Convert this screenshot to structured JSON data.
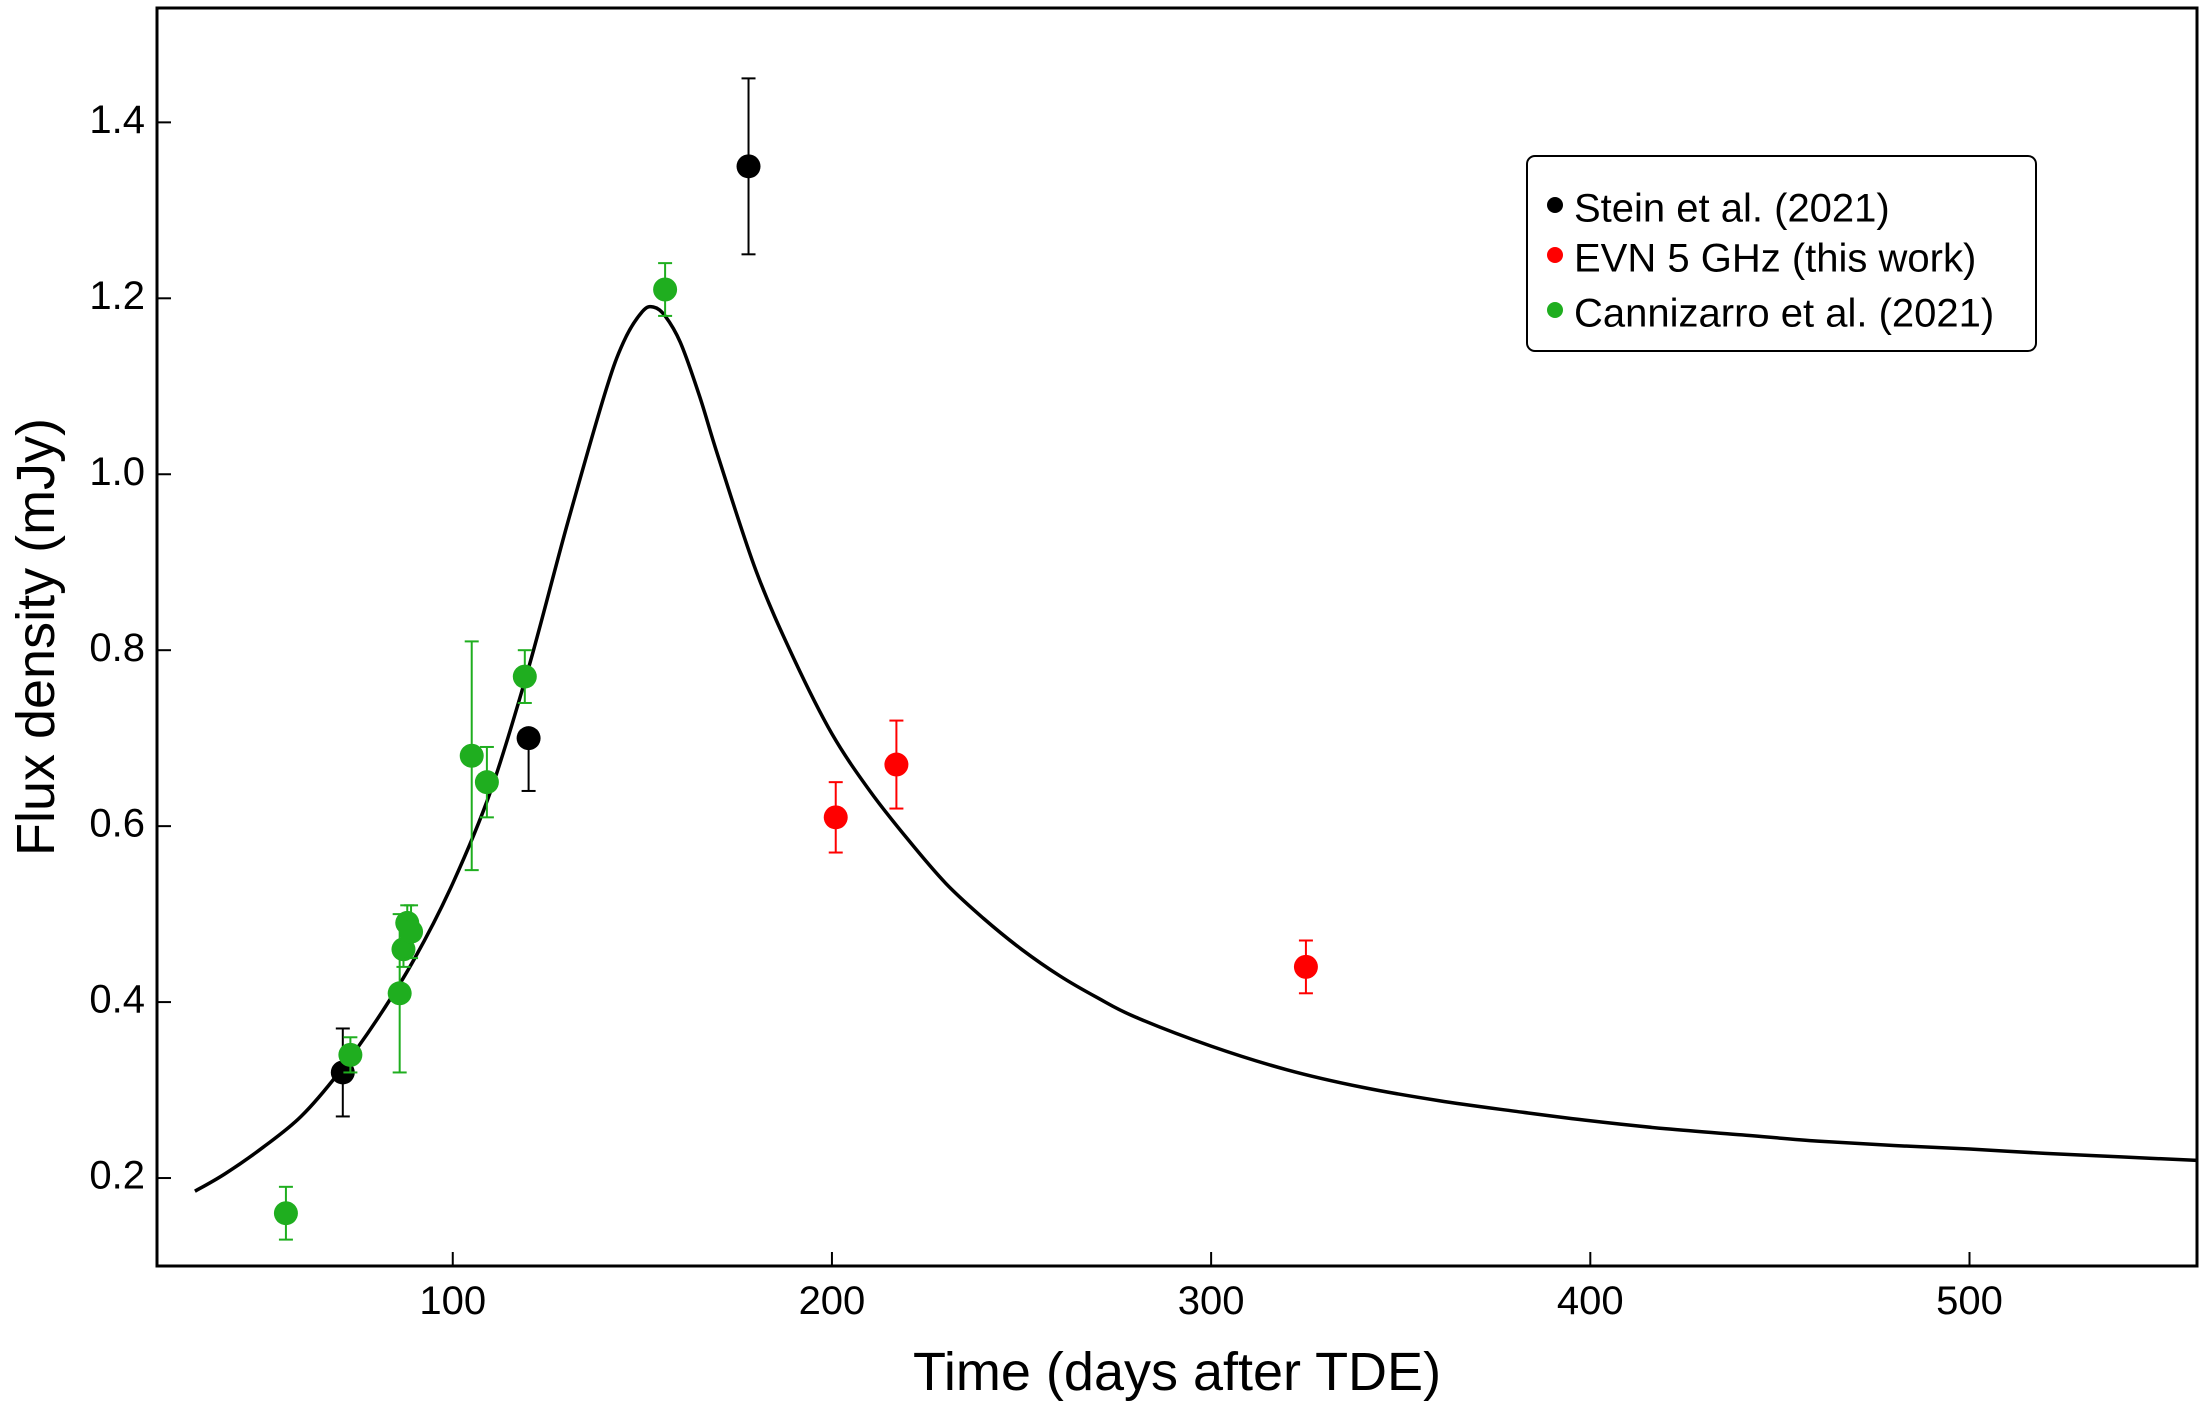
{
  "chart_data": {
    "type": "scatter",
    "title": "",
    "xlabel": "Time (days after TDE)",
    "ylabel": "Flux density (mJy)",
    "xlim": [
      22,
      560
    ],
    "ylim": [
      0.1,
      1.53
    ],
    "x_ticks": [
      100,
      200,
      300,
      400,
      500
    ],
    "y_ticks": [
      0.2,
      0.4,
      0.6,
      0.8,
      1.0,
      1.2,
      1.4
    ],
    "y_tick_labels": [
      "0.2",
      "0.4",
      "0.6",
      "0.8",
      "1.0",
      "1.2",
      "1.4"
    ],
    "grid": false,
    "legend_position": "top-right",
    "series": [
      {
        "name": "Stein et al. (2021)",
        "color": "#000000",
        "x": [
          71,
          120,
          178
        ],
        "y": [
          0.32,
          0.7,
          1.35
        ],
        "err_low": [
          0.27,
          0.64,
          1.25
        ],
        "err_high": [
          0.37,
          0.7,
          1.45
        ]
      },
      {
        "name": "EVN 5 GHz (this work)",
        "color": "#ff0000",
        "x": [
          201,
          217,
          325
        ],
        "y": [
          0.61,
          0.67,
          0.44
        ],
        "err_low": [
          0.57,
          0.62,
          0.41
        ],
        "err_high": [
          0.65,
          0.72,
          0.47
        ]
      },
      {
        "name": "Cannizarro et al. (2021)",
        "color": "#1fae1f",
        "x": [
          56,
          73,
          86,
          87,
          88,
          89,
          105,
          109,
          119,
          156
        ],
        "y": [
          0.16,
          0.34,
          0.41,
          0.46,
          0.49,
          0.48,
          0.68,
          0.65,
          0.77,
          1.21
        ],
        "err_low": [
          0.13,
          0.32,
          0.32,
          0.44,
          0.47,
          0.45,
          0.55,
          0.61,
          0.74,
          1.18
        ],
        "err_high": [
          0.19,
          0.36,
          0.5,
          0.49,
          0.51,
          0.51,
          0.81,
          0.69,
          0.8,
          1.24
        ]
      }
    ],
    "model_curve": {
      "name": "model",
      "color": "#000000",
      "x": [
        32,
        40,
        50,
        60,
        70,
        80,
        90,
        100,
        110,
        120,
        130,
        140,
        145,
        150,
        153,
        156,
        160,
        165,
        170,
        180,
        190,
        200,
        210,
        220,
        230,
        240,
        250,
        260,
        270,
        280,
        300,
        320,
        340,
        360,
        380,
        400,
        420,
        440,
        460,
        480,
        500,
        520,
        540,
        560
      ],
      "y": [
        0.185,
        0.205,
        0.235,
        0.27,
        0.32,
        0.38,
        0.45,
        0.535,
        0.64,
        0.78,
        0.94,
        1.09,
        1.15,
        1.185,
        1.19,
        1.18,
        1.15,
        1.09,
        1.02,
        0.89,
        0.79,
        0.705,
        0.64,
        0.585,
        0.535,
        0.495,
        0.46,
        0.43,
        0.405,
        0.383,
        0.35,
        0.323,
        0.303,
        0.288,
        0.276,
        0.265,
        0.256,
        0.249,
        0.242,
        0.237,
        0.233,
        0.228,
        0.224,
        0.22
      ]
    }
  }
}
